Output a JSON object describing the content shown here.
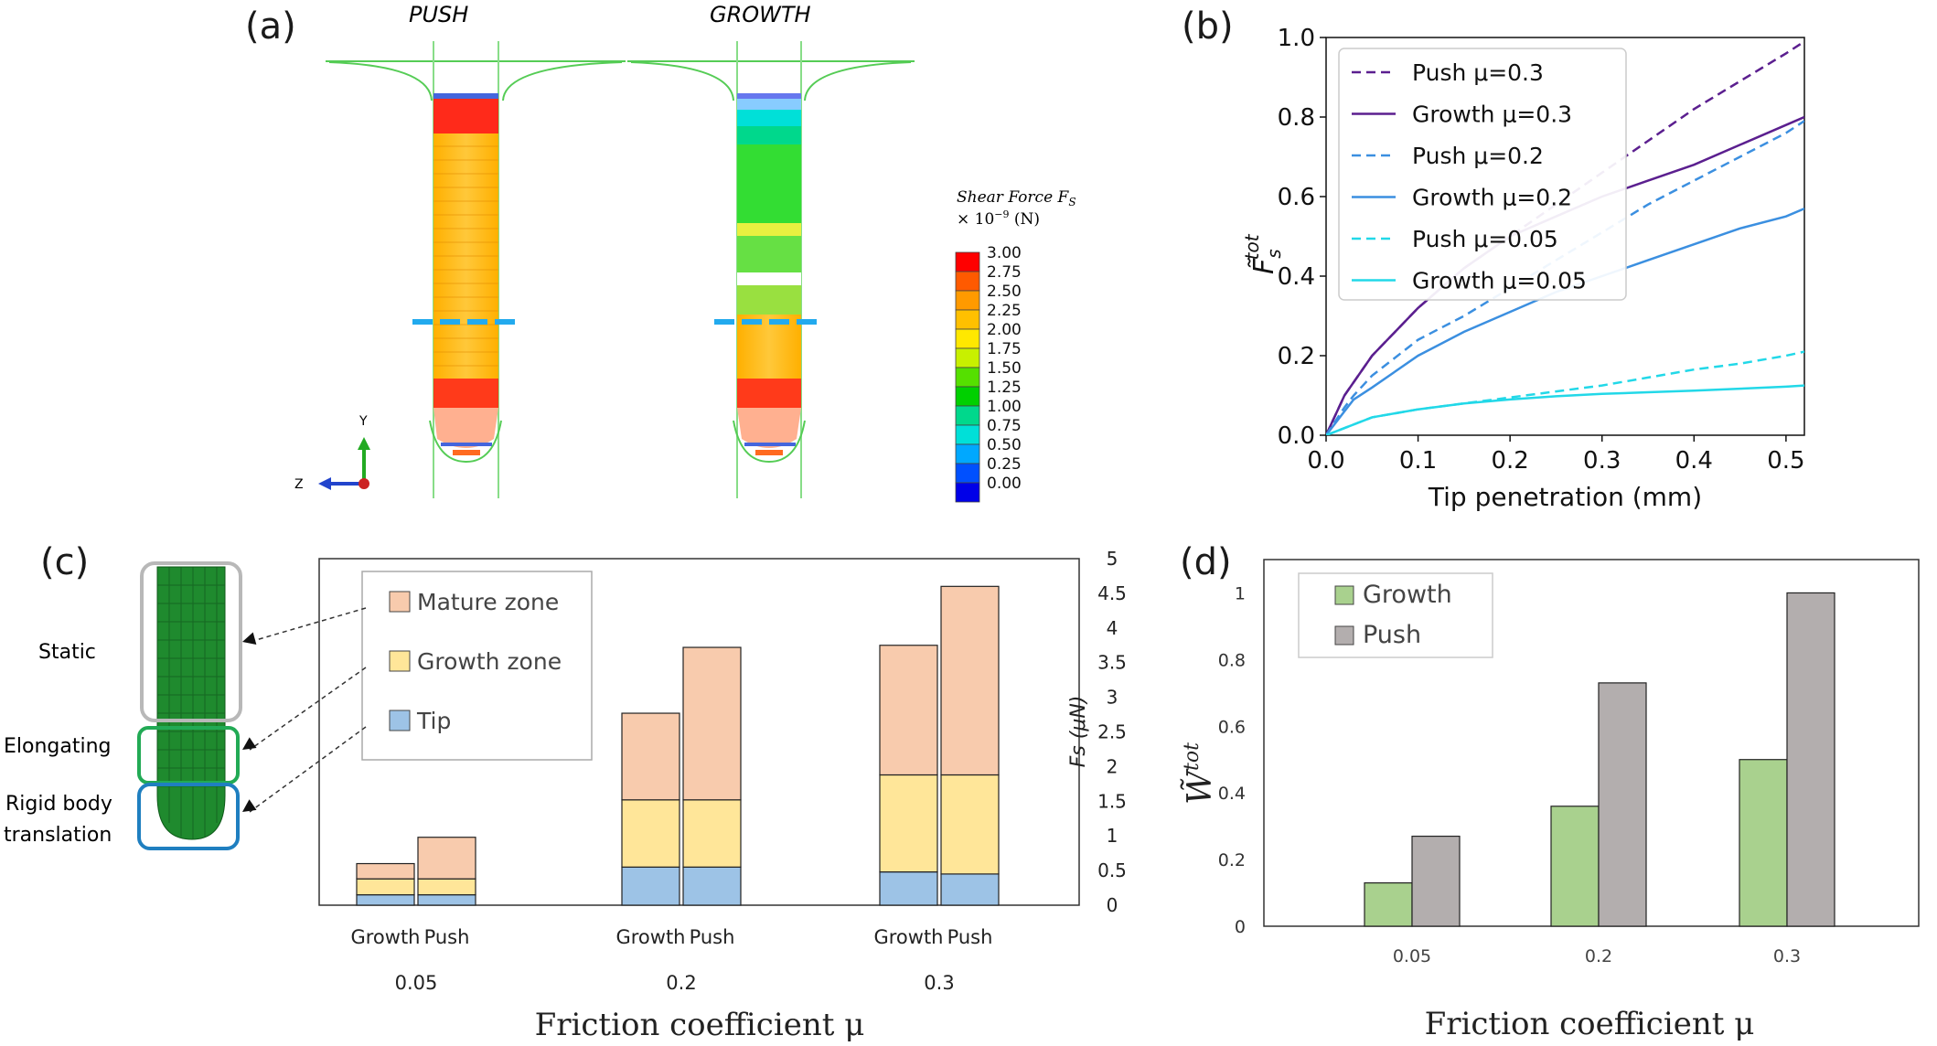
{
  "panel_a": {
    "letter": "(a)",
    "left_title": "PUSH",
    "right_title": "GROWTH",
    "legend": {
      "title_line1": "Shear Force F",
      "title_sub": "S",
      "title_line2": "× 10",
      "title_exp": "−9",
      "title_unit": " (N)",
      "ticks": [
        "3.00",
        "2.75",
        "2.50",
        "2.25",
        "2.00",
        "1.75",
        "1.50",
        "1.25",
        "1.00",
        "0.75",
        "0.50",
        "0.25",
        "0.00"
      ],
      "colors": [
        "#ff0000",
        "#ff5a00",
        "#ff9a00",
        "#ffc000",
        "#ffe800",
        "#c8f000",
        "#55e000",
        "#00d000",
        "#00d88c",
        "#00e0d8",
        "#00a8ff",
        "#0050ff",
        "#0000e8"
      ]
    },
    "axis_y": "Y",
    "axis_z": "Z"
  },
  "panel_c_labels": {
    "letter": "(c)",
    "static": "Static",
    "elongating": "Elongating",
    "rigid_line1": "Rigid body",
    "rigid_line2": "translation"
  },
  "chart_data": [
    {
      "id": "b",
      "letter": "(b)",
      "type": "line",
      "xlabel": "Tip penetration (mm)",
      "ylabel": "F̃",
      "ylabel_sub": "s",
      "ylabel_sup": "tot",
      "xlim": [
        0.0,
        0.52
      ],
      "ylim": [
        0.0,
        1.0
      ],
      "xticks": [
        "0.0",
        "0.1",
        "0.2",
        "0.3",
        "0.4",
        "0.5"
      ],
      "yticks": [
        "0.0",
        "0.2",
        "0.4",
        "0.6",
        "0.8",
        "1.0"
      ],
      "legend_position": "top-left",
      "series": [
        {
          "name": "Push μ=0.3",
          "color": "#5b1f8f",
          "dash": true,
          "x": [
            0,
            0.02,
            0.05,
            0.1,
            0.15,
            0.2,
            0.25,
            0.3,
            0.35,
            0.4,
            0.45,
            0.5,
            0.52
          ],
          "y": [
            0,
            0.1,
            0.2,
            0.32,
            0.42,
            0.5,
            0.58,
            0.66,
            0.74,
            0.82,
            0.89,
            0.96,
            0.99
          ]
        },
        {
          "name": "Growth μ=0.3",
          "color": "#5b1f8f",
          "dash": false,
          "x": [
            0,
            0.02,
            0.05,
            0.1,
            0.15,
            0.2,
            0.25,
            0.3,
            0.35,
            0.4,
            0.45,
            0.5,
            0.52
          ],
          "y": [
            0,
            0.1,
            0.2,
            0.32,
            0.42,
            0.5,
            0.55,
            0.6,
            0.64,
            0.68,
            0.73,
            0.78,
            0.8
          ]
        },
        {
          "name": "Push μ=0.2",
          "color": "#3b8fe0",
          "dash": true,
          "x": [
            0,
            0.02,
            0.03,
            0.05,
            0.1,
            0.15,
            0.2,
            0.25,
            0.3,
            0.35,
            0.4,
            0.45,
            0.5,
            0.52
          ],
          "y": [
            0,
            0.07,
            0.1,
            0.15,
            0.24,
            0.3,
            0.37,
            0.44,
            0.51,
            0.58,
            0.64,
            0.7,
            0.76,
            0.79
          ]
        },
        {
          "name": "Growth μ=0.2",
          "color": "#3b8fe0",
          "dash": false,
          "x": [
            0,
            0.02,
            0.03,
            0.05,
            0.1,
            0.15,
            0.2,
            0.25,
            0.3,
            0.35,
            0.4,
            0.45,
            0.5,
            0.52
          ],
          "y": [
            0,
            0.06,
            0.09,
            0.12,
            0.2,
            0.26,
            0.31,
            0.36,
            0.4,
            0.44,
            0.48,
            0.52,
            0.55,
            0.57
          ]
        },
        {
          "name": "Push μ=0.05",
          "color": "#22d8e8",
          "dash": true,
          "x": [
            0,
            0.05,
            0.1,
            0.15,
            0.2,
            0.25,
            0.3,
            0.35,
            0.4,
            0.45,
            0.5,
            0.52
          ],
          "y": [
            0,
            0.045,
            0.065,
            0.08,
            0.095,
            0.11,
            0.125,
            0.145,
            0.165,
            0.18,
            0.2,
            0.21
          ]
        },
        {
          "name": "Growth μ=0.05",
          "color": "#22d8e8",
          "dash": false,
          "x": [
            0,
            0.05,
            0.1,
            0.15,
            0.2,
            0.25,
            0.3,
            0.35,
            0.4,
            0.45,
            0.5,
            0.52
          ],
          "y": [
            0,
            0.045,
            0.065,
            0.08,
            0.09,
            0.098,
            0.104,
            0.108,
            0.112,
            0.117,
            0.122,
            0.125
          ]
        }
      ]
    },
    {
      "id": "c",
      "letter": "(c)",
      "type": "bar",
      "stacked": true,
      "xlabel": "Friction coefficient μ",
      "ylabel": "Fs (μN)",
      "ylim": [
        0,
        5
      ],
      "yticks": [
        "0",
        "0.5",
        "1",
        "1.5",
        "2",
        "2.5",
        "3",
        "3.5",
        "4",
        "4.5",
        "5"
      ],
      "groups": [
        "0.05",
        "0.2",
        "0.3"
      ],
      "bar_labels": [
        "Growth",
        "Push"
      ],
      "legend_position": "top-left",
      "series": [
        {
          "name": "Tip",
          "color": "#9dc3e6",
          "values": [
            0.15,
            0.15,
            0.55,
            0.55,
            0.48,
            0.45
          ]
        },
        {
          "name": "Growth zone",
          "color": "#ffe699",
          "values": [
            0.23,
            0.23,
            0.97,
            0.97,
            1.4,
            1.43
          ]
        },
        {
          "name": "Mature zone",
          "color": "#f8cbad",
          "values": [
            0.22,
            0.6,
            1.25,
            2.2,
            1.87,
            2.72
          ]
        }
      ]
    },
    {
      "id": "d",
      "letter": "(d)",
      "type": "bar",
      "xlabel": "Friction coefficient μ",
      "ylabel": "W̃",
      "ylabel_sup": "tot",
      "ylim": [
        0,
        1.1
      ],
      "yticks": [
        "0",
        "0.2",
        "0.4",
        "0.6",
        "0.8",
        "1"
      ],
      "categories": [
        "0.05",
        "0.2",
        "0.3"
      ],
      "legend_position": "top-left",
      "series": [
        {
          "name": "Growth",
          "color": "#a9d18e",
          "values": [
            0.13,
            0.36,
            0.5
          ]
        },
        {
          "name": "Push",
          "color": "#b3aeae",
          "values": [
            0.27,
            0.73,
            1.0
          ]
        }
      ]
    }
  ]
}
